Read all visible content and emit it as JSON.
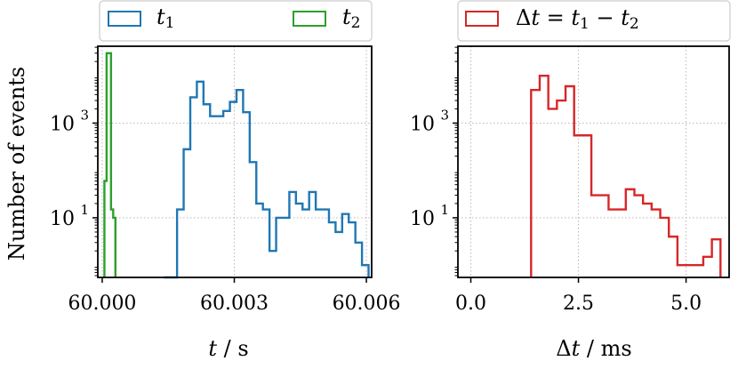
{
  "chart_data": [
    {
      "type": "histogram",
      "xlabel": "t / s",
      "ylabel": "Number of events",
      "yscale": "log",
      "xlim": [
        59.9999,
        60.00612
      ],
      "ylim": [
        0.55,
        42000
      ],
      "xticks": [
        60.0,
        60.003,
        60.006
      ],
      "xtick_labels": [
        "60.000",
        "60.003",
        "60.006"
      ],
      "yticks": [
        10,
        1000
      ],
      "ytick_labels": [
        "10^1",
        "10^3"
      ],
      "grid": true,
      "legend": {
        "placement": "top-outside",
        "columns": 2
      },
      "series": [
        {
          "name": "t_1",
          "color": "#1f77b4",
          "edges": [
            60.0014,
            60.00155,
            60.0017,
            60.00185,
            60.002,
            60.00215,
            60.0023,
            60.00245,
            60.0026,
            60.00275,
            60.0029,
            60.00305,
            60.0032,
            60.00335,
            60.0035,
            60.00365,
            60.0038,
            60.00395,
            60.0041,
            60.00425,
            60.0044,
            60.00455,
            60.0047,
            60.00485,
            60.005,
            60.00515,
            60.0053,
            60.00545,
            60.0056,
            60.00575,
            60.0059,
            60.00605
          ],
          "counts": [
            0,
            0,
            15,
            280,
            3500,
            7500,
            2500,
            1400,
            1400,
            1800,
            2800,
            5000,
            1700,
            150,
            20,
            15,
            2,
            10,
            10,
            35,
            20,
            15,
            35,
            15,
            15,
            8,
            5,
            12,
            8,
            3,
            1,
            0
          ]
        },
        {
          "name": "t_2",
          "color": "#2ca02c",
          "edges": [
            60.00005,
            60.0001,
            60.00015,
            60.0002,
            60.00025,
            60.0003
          ],
          "counts": [
            60,
            30000,
            30000,
            15,
            10
          ]
        }
      ]
    },
    {
      "type": "histogram",
      "xlabel": "Δt / ms",
      "yscale": "log",
      "xlim": [
        -0.3,
        6.0
      ],
      "ylim": [
        0.55,
        42000
      ],
      "xticks": [
        0.0,
        2.5,
        5.0
      ],
      "xtick_labels": [
        "0.0",
        "2.5",
        "5.0"
      ],
      "yticks": [
        10,
        1000
      ],
      "ytick_labels": [
        "10^1",
        "10^3"
      ],
      "grid": true,
      "legend": {
        "placement": "top-outside",
        "columns": 1
      },
      "series": [
        {
          "name": "Δt = t_1 − t_2",
          "color": "#d62728",
          "edges": [
            1.4,
            1.6,
            1.8,
            2.0,
            2.2,
            2.4,
            2.6,
            2.8,
            3.0,
            3.2,
            3.4,
            3.6,
            3.8,
            4.0,
            4.2,
            4.4,
            4.6,
            4.8,
            5.0,
            5.2,
            5.4,
            5.6,
            5.8
          ],
          "counts": [
            5000,
            10000,
            2000,
            3000,
            6000,
            550,
            550,
            30,
            30,
            15,
            15,
            40,
            30,
            20,
            15,
            10,
            4,
            1,
            1,
            1,
            1.5,
            3.5
          ]
        }
      ]
    }
  ]
}
